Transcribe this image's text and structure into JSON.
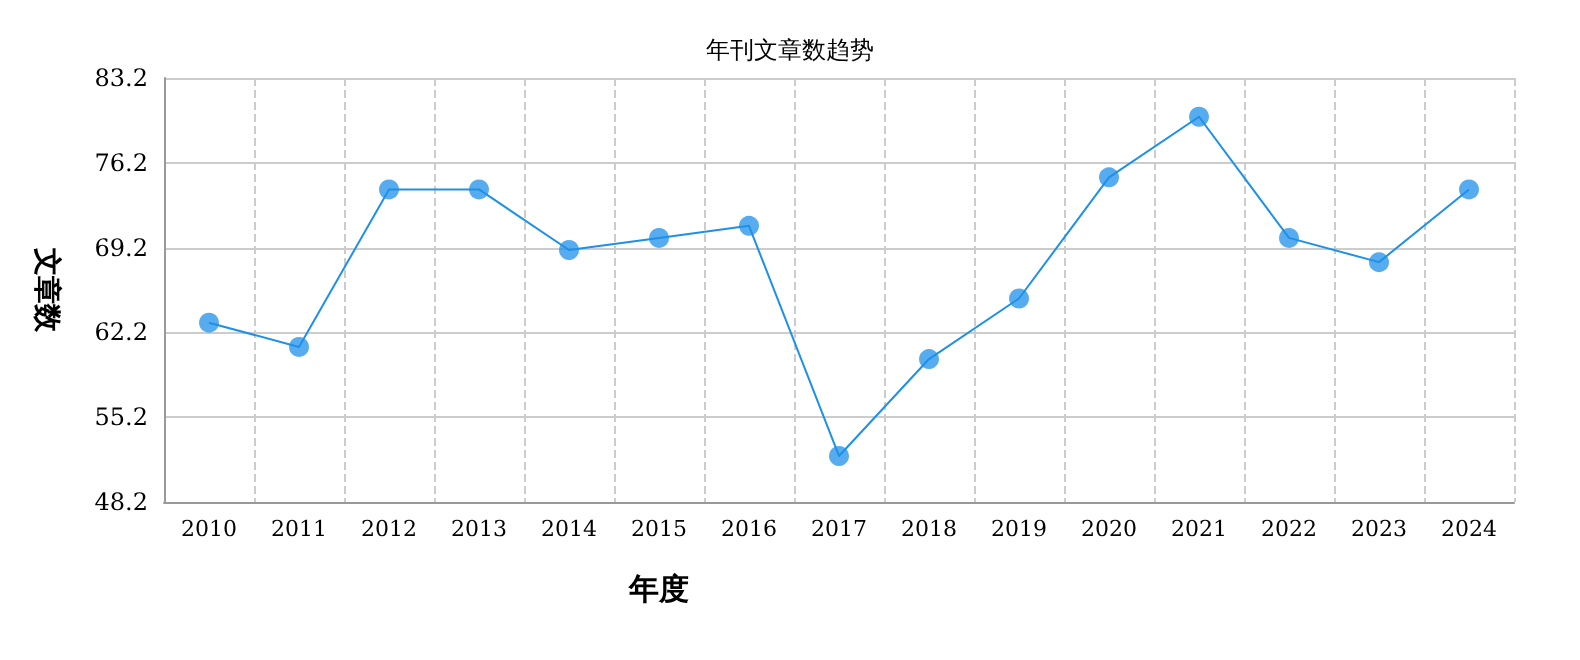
{
  "chart_data": {
    "type": "line",
    "title": "年刊文章数趋势",
    "xlabel": "年度",
    "ylabel": "文章数",
    "categories": [
      "2010",
      "2011",
      "2012",
      "2013",
      "2014",
      "2015",
      "2016",
      "2017",
      "2018",
      "2019",
      "2020",
      "2021",
      "2022",
      "2023",
      "2024"
    ],
    "series": [
      {
        "color": "#1e90e8",
        "values": [
          63,
          61,
          74,
          74,
          69,
          70,
          71,
          52,
          60,
          65,
          75,
          80,
          70,
          68,
          74
        ]
      }
    ],
    "ylim": [
      48.2,
      83.2
    ],
    "yticks": [
      48.2,
      55.2,
      62.2,
      69.2,
      76.2,
      83.2
    ],
    "grid": true,
    "marker": "circle",
    "line_style": "solid"
  }
}
